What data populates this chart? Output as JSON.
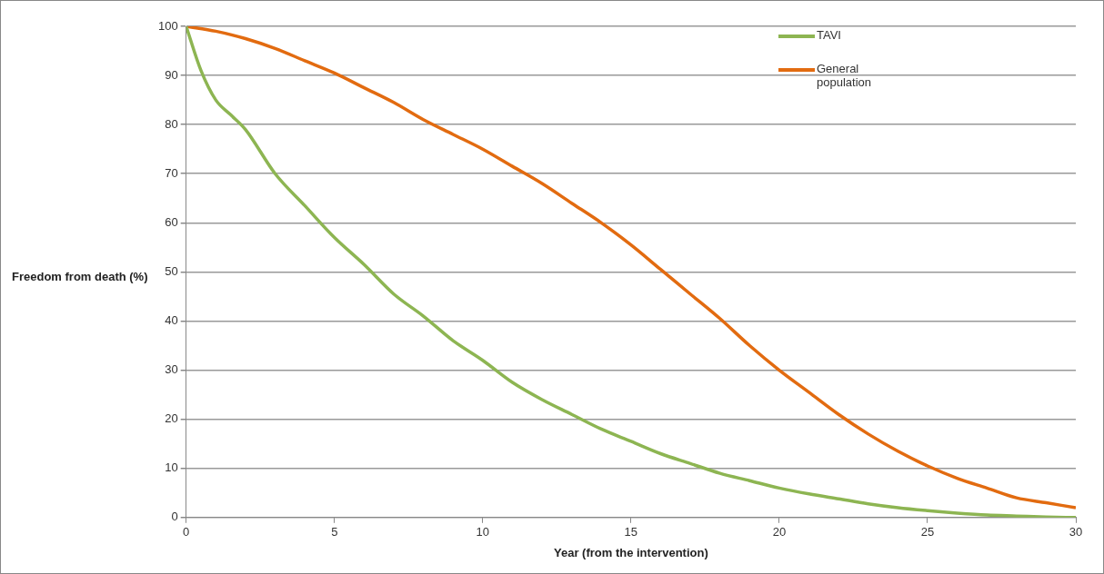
{
  "chart_data": {
    "type": "line",
    "xlabel": "Year (from the intervention)",
    "ylabel": "Freedom from death (%)",
    "xlim": [
      0,
      30
    ],
    "xticks": [
      0,
      5,
      10,
      15,
      20,
      25,
      30
    ],
    "ylim": [
      0,
      100
    ],
    "yticks": [
      0,
      10,
      20,
      30,
      40,
      50,
      60,
      70,
      80,
      90,
      100
    ],
    "grid": "y",
    "legend": "top right",
    "marker": "none",
    "series": [
      {
        "name": "TAVI",
        "color": "#8db552",
        "x": [
          0,
          0.5,
          1,
          1.5,
          2,
          3,
          4,
          5,
          6,
          7,
          8,
          9,
          10,
          11,
          12,
          13,
          14,
          15,
          16,
          17,
          18,
          19,
          20,
          21,
          22,
          23,
          24,
          25,
          26,
          27,
          28,
          29,
          30
        ],
        "values": [
          100,
          91,
          85,
          82,
          79,
          70,
          63.5,
          57,
          51.5,
          45.5,
          41,
          36,
          32,
          27.5,
          24,
          21,
          18,
          15.5,
          13,
          11,
          9,
          7.5,
          6,
          4.8,
          3.8,
          2.8,
          2,
          1.4,
          0.9,
          0.5,
          0.3,
          0.1,
          0
        ]
      },
      {
        "name": "General population",
        "color": "#e26b10",
        "x": [
          0,
          1,
          2,
          3,
          4,
          5,
          6,
          7,
          8,
          9,
          10,
          11,
          12,
          13,
          14,
          15,
          16,
          17,
          18,
          19,
          20,
          21,
          22,
          23,
          24,
          25,
          26,
          27,
          28,
          29,
          30
        ],
        "values": [
          100,
          99,
          97.5,
          95.5,
          93,
          90.5,
          87.5,
          84.5,
          81,
          78,
          75,
          71.5,
          68,
          64,
          60,
          55.5,
          50.5,
          45.5,
          40.5,
          35,
          30,
          25.5,
          21,
          17,
          13.5,
          10.5,
          8,
          6,
          4,
          3,
          2
        ]
      }
    ]
  }
}
